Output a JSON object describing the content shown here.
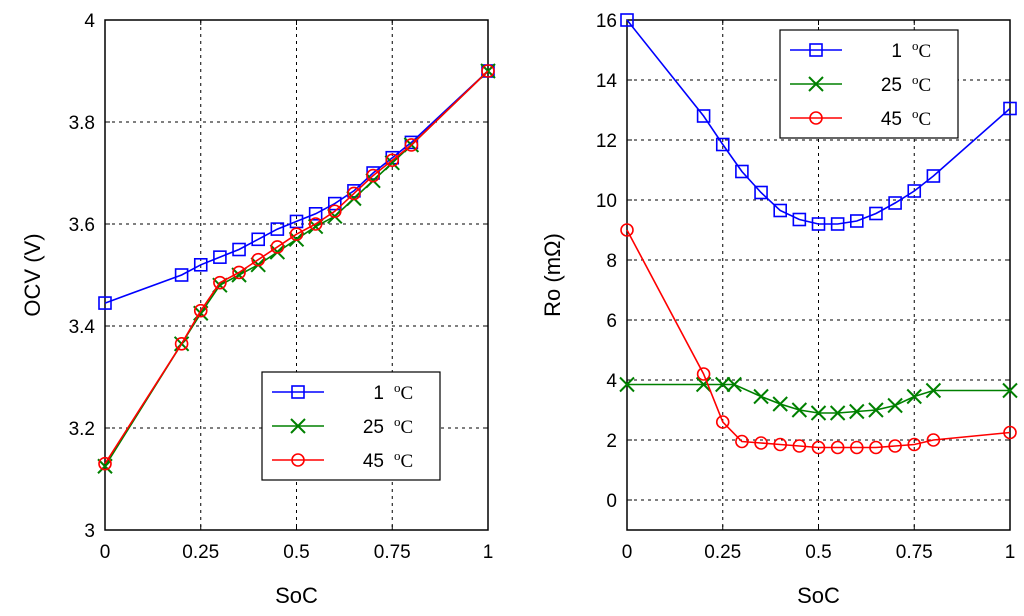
{
  "chart_data": [
    {
      "type": "line",
      "xlabel": "SoC",
      "ylabel": "OCV (V)",
      "xlim": [
        0,
        1
      ],
      "ylim": [
        3,
        4
      ],
      "xticks": [
        0,
        0.25,
        0.5,
        0.75,
        1
      ],
      "xtick_labels": [
        "0",
        "0.25",
        "0.5",
        "0.75",
        "1"
      ],
      "yticks": [
        3,
        3.2,
        3.4,
        3.6,
        3.8,
        4
      ],
      "ytick_labels": [
        "3",
        "3.2",
        "3.4",
        "3.6",
        "3.8",
        "4"
      ],
      "grid": true,
      "legend_position": "bottom-right",
      "series": [
        {
          "name": "1 °C",
          "label_num": "1",
          "unit": "oC",
          "color": "#0000ff",
          "marker": "square",
          "x": [
            0,
            0.2,
            0.25,
            0.3,
            0.35,
            0.4,
            0.45,
            0.5,
            0.55,
            0.6,
            0.65,
            0.7,
            0.75,
            0.8,
            1
          ],
          "y": [
            3.445,
            3.5,
            3.52,
            3.535,
            3.55,
            3.57,
            3.59,
            3.605,
            3.62,
            3.64,
            3.665,
            3.7,
            3.73,
            3.76,
            3.9
          ]
        },
        {
          "name": "25 °C",
          "label_num": "25",
          "unit": "oC",
          "color": "#008000",
          "marker": "x",
          "x": [
            0,
            0.2,
            0.25,
            0.3,
            0.35,
            0.4,
            0.45,
            0.5,
            0.55,
            0.6,
            0.65,
            0.7,
            0.75,
            0.8,
            1
          ],
          "y": [
            3.125,
            3.365,
            3.425,
            3.48,
            3.5,
            3.52,
            3.545,
            3.57,
            3.595,
            3.615,
            3.65,
            3.685,
            3.72,
            3.755,
            3.9
          ]
        },
        {
          "name": "45 °C",
          "label_num": "45",
          "unit": "oC",
          "color": "#ff0000",
          "marker": "circle",
          "x": [
            0,
            0.2,
            0.25,
            0.3,
            0.35,
            0.4,
            0.45,
            0.5,
            0.55,
            0.6,
            0.65,
            0.7,
            0.75,
            0.8,
            1
          ],
          "y": [
            3.13,
            3.365,
            3.43,
            3.485,
            3.505,
            3.53,
            3.555,
            3.58,
            3.6,
            3.625,
            3.66,
            3.695,
            3.725,
            3.755,
            3.9
          ]
        }
      ]
    },
    {
      "type": "line",
      "xlabel": "SoC",
      "ylabel": "Ro (mΩ)",
      "xlim": [
        0,
        1
      ],
      "ylim": [
        -1,
        16
      ],
      "xticks": [
        0,
        0.25,
        0.5,
        0.75,
        1
      ],
      "xtick_labels": [
        "0",
        "0.25",
        "0.5",
        "0.75",
        "1"
      ],
      "yticks": [
        0,
        2,
        4,
        6,
        8,
        10,
        12,
        14,
        16
      ],
      "ytick_labels": [
        "0",
        "2",
        "4",
        "6",
        "8",
        "10",
        "12",
        "14",
        "16"
      ],
      "grid": true,
      "legend_position": "top-center",
      "series": [
        {
          "name": "1 °C",
          "label_num": "1",
          "unit": "oC",
          "color": "#0000ff",
          "marker": "square",
          "x": [
            0,
            0.2,
            0.25,
            0.3,
            0.35,
            0.4,
            0.45,
            0.5,
            0.55,
            0.6,
            0.65,
            0.7,
            0.75,
            0.8,
            1
          ],
          "y": [
            16,
            12.8,
            11.85,
            10.95,
            10.25,
            9.65,
            9.35,
            9.2,
            9.2,
            9.3,
            9.55,
            9.9,
            10.3,
            10.8,
            13.05
          ]
        },
        {
          "name": "25 °C",
          "label_num": "25",
          "unit": "oC",
          "color": "#008000",
          "marker": "x",
          "x": [
            0,
            0.2,
            0.25,
            0.28,
            0.35,
            0.4,
            0.45,
            0.5,
            0.55,
            0.6,
            0.65,
            0.7,
            0.75,
            0.8,
            1
          ],
          "y": [
            3.85,
            3.85,
            3.85,
            3.85,
            3.45,
            3.2,
            3.0,
            2.9,
            2.9,
            2.95,
            3.0,
            3.15,
            3.45,
            3.65,
            3.65
          ]
        },
        {
          "name": "45 °C",
          "label_num": "45",
          "unit": "oC",
          "color": "#ff0000",
          "marker": "circle",
          "x": [
            0,
            0.2,
            0.25,
            0.3,
            0.35,
            0.4,
            0.45,
            0.5,
            0.55,
            0.6,
            0.65,
            0.7,
            0.75,
            0.8,
            1
          ],
          "y": [
            9.0,
            4.2,
            2.6,
            1.95,
            1.9,
            1.85,
            1.8,
            1.75,
            1.75,
            1.75,
            1.75,
            1.8,
            1.85,
            2.0,
            2.25
          ]
        }
      ]
    }
  ]
}
